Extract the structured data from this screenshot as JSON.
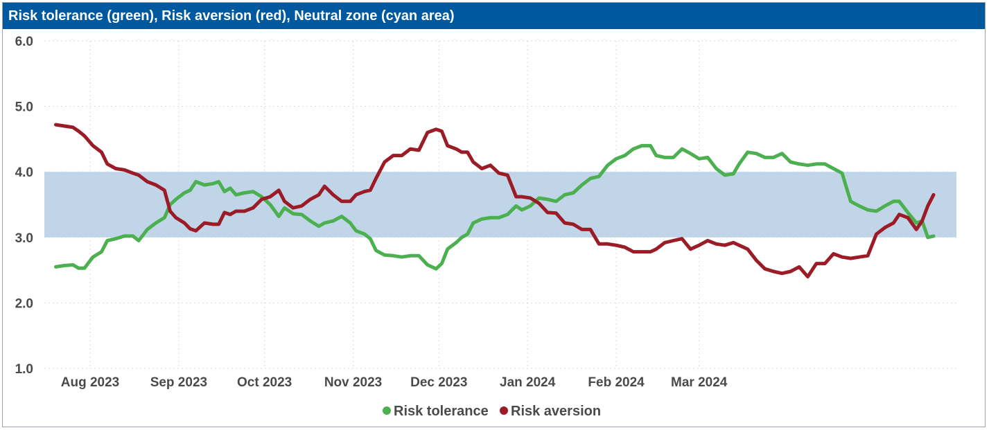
{
  "colors": {
    "header_bg": "#00589f",
    "tolerance": "#4caf50",
    "aversion": "#9b1c27",
    "neutral_zone": "#c0d6e8",
    "grid": "#d9d9d9"
  },
  "chart_data": {
    "type": "line",
    "title": "Risk tolerance (green), Risk aversion (red), Neutral zone (cyan area)",
    "xlabel": "",
    "ylabel": "",
    "ylim": [
      1.0,
      6.0
    ],
    "yticks": [
      "6.0",
      "5.0",
      "4.0",
      "3.0",
      "2.0",
      "1.0"
    ],
    "xticks": [
      "Aug 2023",
      "Sep 2023",
      "Oct 2023",
      "Nov 2023",
      "Dec 2023",
      "Jan 2024",
      "Feb 2024",
      "Mar 2024"
    ],
    "neutral_zone": [
      3.0,
      4.0
    ],
    "grid": true,
    "legend_position": "bottom-center",
    "series": [
      {
        "name": "Risk tolerance",
        "points": [
          [
            "2023-07-20",
            2.55
          ],
          [
            "2023-07-23",
            2.57
          ],
          [
            "2023-07-26",
            2.58
          ],
          [
            "2023-07-28",
            2.53
          ],
          [
            "2023-07-30",
            2.53
          ],
          [
            "2023-08-02",
            2.7
          ],
          [
            "2023-08-05",
            2.78
          ],
          [
            "2023-08-07",
            2.95
          ],
          [
            "2023-08-10",
            2.98
          ],
          [
            "2023-08-13",
            3.02
          ],
          [
            "2023-08-16",
            3.02
          ],
          [
            "2023-08-18",
            2.95
          ],
          [
            "2023-08-21",
            3.12
          ],
          [
            "2023-08-24",
            3.22
          ],
          [
            "2023-08-27",
            3.3
          ],
          [
            "2023-08-29",
            3.5
          ],
          [
            "2023-08-31",
            3.58
          ],
          [
            "2023-09-03",
            3.68
          ],
          [
            "2023-09-05",
            3.72
          ],
          [
            "2023-09-07",
            3.85
          ],
          [
            "2023-09-10",
            3.8
          ],
          [
            "2023-09-13",
            3.82
          ],
          [
            "2023-09-15",
            3.85
          ],
          [
            "2023-09-17",
            3.7
          ],
          [
            "2023-09-19",
            3.75
          ],
          [
            "2023-09-21",
            3.65
          ],
          [
            "2023-09-24",
            3.68
          ],
          [
            "2023-09-27",
            3.7
          ],
          [
            "2023-09-30",
            3.62
          ],
          [
            "2023-10-03",
            3.5
          ],
          [
            "2023-10-06",
            3.32
          ],
          [
            "2023-10-08",
            3.45
          ],
          [
            "2023-10-11",
            3.36
          ],
          [
            "2023-10-14",
            3.35
          ],
          [
            "2023-10-17",
            3.25
          ],
          [
            "2023-10-20",
            3.17
          ],
          [
            "2023-10-22",
            3.22
          ],
          [
            "2023-10-25",
            3.25
          ],
          [
            "2023-10-28",
            3.32
          ],
          [
            "2023-10-31",
            3.22
          ],
          [
            "2023-11-02",
            3.1
          ],
          [
            "2023-11-05",
            3.05
          ],
          [
            "2023-11-07",
            2.98
          ],
          [
            "2023-11-09",
            2.8
          ],
          [
            "2023-11-12",
            2.73
          ],
          [
            "2023-11-15",
            2.72
          ],
          [
            "2023-11-18",
            2.7
          ],
          [
            "2023-11-21",
            2.72
          ],
          [
            "2023-11-24",
            2.72
          ],
          [
            "2023-11-27",
            2.58
          ],
          [
            "2023-11-30",
            2.52
          ],
          [
            "2023-12-02",
            2.6
          ],
          [
            "2023-12-04",
            2.82
          ],
          [
            "2023-12-07",
            2.92
          ],
          [
            "2023-12-09",
            3.0
          ],
          [
            "2023-12-11",
            3.05
          ],
          [
            "2023-12-13",
            3.22
          ],
          [
            "2023-12-16",
            3.28
          ],
          [
            "2023-12-19",
            3.3
          ],
          [
            "2023-12-22",
            3.3
          ],
          [
            "2023-12-25",
            3.35
          ],
          [
            "2023-12-28",
            3.48
          ],
          [
            "2023-12-30",
            3.42
          ],
          [
            "2024-01-02",
            3.48
          ],
          [
            "2024-01-05",
            3.6
          ],
          [
            "2024-01-08",
            3.58
          ],
          [
            "2024-01-11",
            3.55
          ],
          [
            "2024-01-14",
            3.65
          ],
          [
            "2024-01-17",
            3.68
          ],
          [
            "2024-01-20",
            3.8
          ],
          [
            "2024-01-23",
            3.9
          ],
          [
            "2024-01-26",
            3.93
          ],
          [
            "2024-01-29",
            4.1
          ],
          [
            "2024-02-01",
            4.2
          ],
          [
            "2024-02-04",
            4.25
          ],
          [
            "2024-02-07",
            4.35
          ],
          [
            "2024-02-10",
            4.4
          ],
          [
            "2024-02-13",
            4.4
          ],
          [
            "2024-02-15",
            4.25
          ],
          [
            "2024-02-18",
            4.22
          ],
          [
            "2024-02-21",
            4.22
          ],
          [
            "2024-02-24",
            4.35
          ],
          [
            "2024-02-27",
            4.28
          ],
          [
            "2024-03-01",
            4.2
          ],
          [
            "2024-03-04",
            4.22
          ],
          [
            "2024-03-07",
            4.05
          ],
          [
            "2024-03-10",
            3.95
          ],
          [
            "2024-03-13",
            3.97
          ],
          [
            "2024-03-15",
            4.12
          ],
          [
            "2024-03-18",
            4.3
          ],
          [
            "2024-03-21",
            4.28
          ],
          [
            "2024-03-24",
            4.22
          ],
          [
            "2024-03-27",
            4.22
          ],
          [
            "2024-03-30",
            4.28
          ],
          [
            "2024-04-02",
            4.15
          ],
          [
            "2024-04-05",
            4.12
          ],
          [
            "2024-04-08",
            4.1
          ],
          [
            "2024-04-11",
            4.12
          ],
          [
            "2024-04-14",
            4.12
          ],
          [
            "2024-04-17",
            4.05
          ],
          [
            "2024-04-20",
            3.98
          ],
          [
            "2024-04-23",
            3.55
          ],
          [
            "2024-04-26",
            3.48
          ],
          [
            "2024-04-29",
            3.42
          ],
          [
            "2024-05-02",
            3.4
          ],
          [
            "2024-05-05",
            3.48
          ],
          [
            "2024-05-08",
            3.55
          ],
          [
            "2024-05-10",
            3.55
          ],
          [
            "2024-05-13",
            3.38
          ],
          [
            "2024-05-16",
            3.22
          ],
          [
            "2024-05-18",
            3.25
          ],
          [
            "2024-05-20",
            3.0
          ],
          [
            "2024-05-22",
            3.02
          ]
        ]
      },
      {
        "name": "Risk aversion",
        "points": [
          [
            "2023-07-20",
            4.72
          ],
          [
            "2023-07-23",
            4.7
          ],
          [
            "2023-07-26",
            4.68
          ],
          [
            "2023-07-28",
            4.62
          ],
          [
            "2023-07-30",
            4.55
          ],
          [
            "2023-08-02",
            4.4
          ],
          [
            "2023-08-05",
            4.3
          ],
          [
            "2023-08-07",
            4.12
          ],
          [
            "2023-08-10",
            4.05
          ],
          [
            "2023-08-13",
            4.03
          ],
          [
            "2023-08-16",
            3.98
          ],
          [
            "2023-08-18",
            3.95
          ],
          [
            "2023-08-21",
            3.85
          ],
          [
            "2023-08-24",
            3.8
          ],
          [
            "2023-08-27",
            3.72
          ],
          [
            "2023-08-29",
            3.4
          ],
          [
            "2023-08-31",
            3.3
          ],
          [
            "2023-09-03",
            3.22
          ],
          [
            "2023-09-05",
            3.13
          ],
          [
            "2023-09-07",
            3.1
          ],
          [
            "2023-09-10",
            3.22
          ],
          [
            "2023-09-13",
            3.2
          ],
          [
            "2023-09-15",
            3.2
          ],
          [
            "2023-09-17",
            3.38
          ],
          [
            "2023-09-19",
            3.35
          ],
          [
            "2023-09-21",
            3.4
          ],
          [
            "2023-09-24",
            3.4
          ],
          [
            "2023-09-27",
            3.45
          ],
          [
            "2023-09-30",
            3.58
          ],
          [
            "2023-10-03",
            3.62
          ],
          [
            "2023-10-06",
            3.72
          ],
          [
            "2023-10-08",
            3.55
          ],
          [
            "2023-10-11",
            3.45
          ],
          [
            "2023-10-14",
            3.48
          ],
          [
            "2023-10-17",
            3.58
          ],
          [
            "2023-10-20",
            3.65
          ],
          [
            "2023-10-22",
            3.78
          ],
          [
            "2023-10-25",
            3.65
          ],
          [
            "2023-10-28",
            3.55
          ],
          [
            "2023-10-31",
            3.55
          ],
          [
            "2023-11-02",
            3.65
          ],
          [
            "2023-11-05",
            3.7
          ],
          [
            "2023-11-07",
            3.72
          ],
          [
            "2023-11-09",
            3.9
          ],
          [
            "2023-11-12",
            4.15
          ],
          [
            "2023-11-15",
            4.25
          ],
          [
            "2023-11-18",
            4.25
          ],
          [
            "2023-11-21",
            4.35
          ],
          [
            "2023-11-24",
            4.33
          ],
          [
            "2023-11-27",
            4.6
          ],
          [
            "2023-11-30",
            4.65
          ],
          [
            "2023-12-02",
            4.62
          ],
          [
            "2023-12-04",
            4.4
          ],
          [
            "2023-12-07",
            4.35
          ],
          [
            "2023-12-09",
            4.3
          ],
          [
            "2023-12-11",
            4.3
          ],
          [
            "2023-12-13",
            4.15
          ],
          [
            "2023-12-16",
            4.05
          ],
          [
            "2023-12-19",
            4.1
          ],
          [
            "2023-12-22",
            3.98
          ],
          [
            "2023-12-25",
            3.95
          ],
          [
            "2023-12-28",
            3.62
          ],
          [
            "2023-12-30",
            3.62
          ],
          [
            "2024-01-02",
            3.6
          ],
          [
            "2024-01-05",
            3.52
          ],
          [
            "2024-01-08",
            3.38
          ],
          [
            "2024-01-11",
            3.37
          ],
          [
            "2024-01-14",
            3.22
          ],
          [
            "2024-01-17",
            3.2
          ],
          [
            "2024-01-20",
            3.12
          ],
          [
            "2024-01-23",
            3.12
          ],
          [
            "2024-01-26",
            2.9
          ],
          [
            "2024-01-29",
            2.9
          ],
          [
            "2024-02-01",
            2.88
          ],
          [
            "2024-02-04",
            2.85
          ],
          [
            "2024-02-07",
            2.78
          ],
          [
            "2024-02-10",
            2.78
          ],
          [
            "2024-02-13",
            2.78
          ],
          [
            "2024-02-15",
            2.82
          ],
          [
            "2024-02-18",
            2.92
          ],
          [
            "2024-02-21",
            2.95
          ],
          [
            "2024-02-24",
            2.98
          ],
          [
            "2024-02-27",
            2.82
          ],
          [
            "2024-03-01",
            2.88
          ],
          [
            "2024-03-04",
            2.95
          ],
          [
            "2024-03-07",
            2.9
          ],
          [
            "2024-03-10",
            2.88
          ],
          [
            "2024-03-13",
            2.92
          ],
          [
            "2024-03-15",
            2.88
          ],
          [
            "2024-03-18",
            2.82
          ],
          [
            "2024-03-21",
            2.65
          ],
          [
            "2024-03-24",
            2.52
          ],
          [
            "2024-03-27",
            2.48
          ],
          [
            "2024-03-30",
            2.45
          ],
          [
            "2024-04-02",
            2.48
          ],
          [
            "2024-04-05",
            2.55
          ],
          [
            "2024-04-08",
            2.4
          ],
          [
            "2024-04-11",
            2.6
          ],
          [
            "2024-04-14",
            2.6
          ],
          [
            "2024-04-17",
            2.75
          ],
          [
            "2024-04-20",
            2.7
          ],
          [
            "2024-04-23",
            2.68
          ],
          [
            "2024-04-26",
            2.7
          ],
          [
            "2024-04-29",
            2.72
          ],
          [
            "2024-05-02",
            3.05
          ],
          [
            "2024-05-05",
            3.15
          ],
          [
            "2024-05-08",
            3.22
          ],
          [
            "2024-05-10",
            3.35
          ],
          [
            "2024-05-13",
            3.3
          ],
          [
            "2024-05-16",
            3.12
          ],
          [
            "2024-05-18",
            3.25
          ],
          [
            "2024-05-20",
            3.48
          ],
          [
            "2024-05-22",
            3.65
          ]
        ]
      }
    ]
  }
}
